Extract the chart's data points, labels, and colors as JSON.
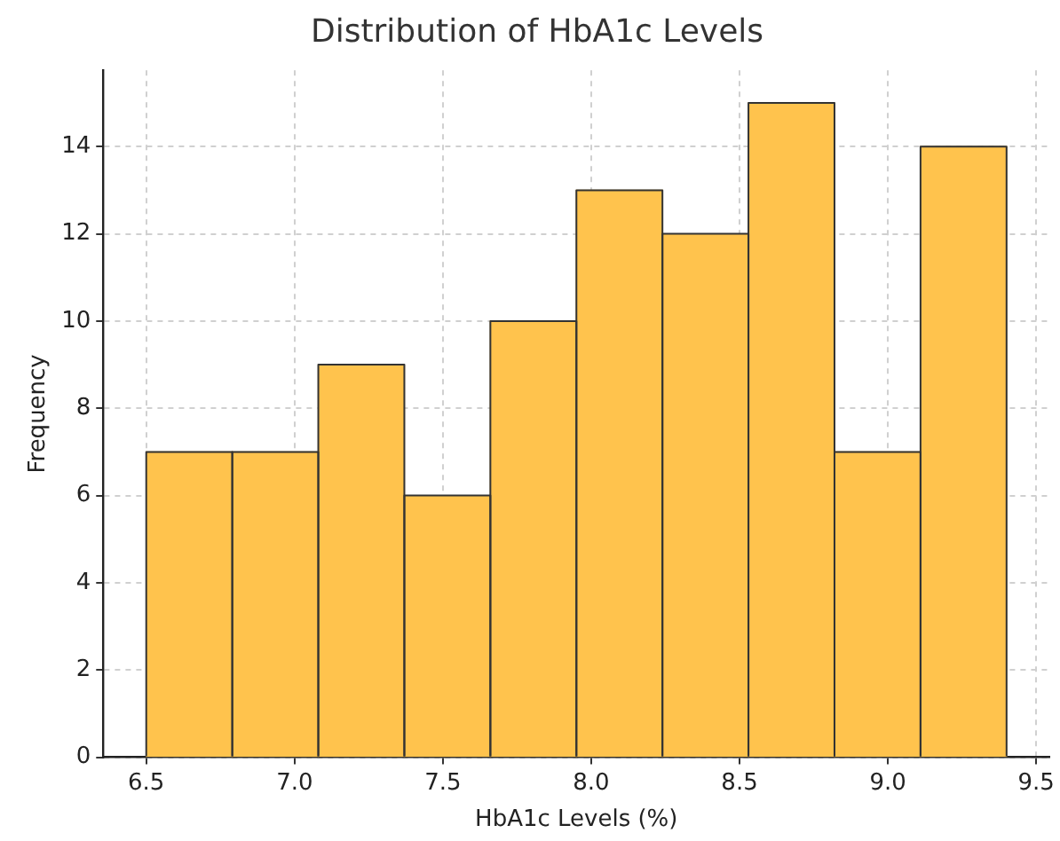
{
  "chart_data": {
    "type": "histogram",
    "title": "Distribution of HbA1c Levels",
    "xlabel": "HbA1c Levels (%)",
    "ylabel": "Frequency",
    "bins": [
      6.5,
      6.79,
      7.08,
      7.37,
      7.66,
      7.95,
      8.24,
      8.53,
      8.82,
      9.11,
      9.4
    ],
    "values": [
      7,
      7,
      9,
      6,
      10,
      13,
      12,
      15,
      7,
      14
    ],
    "color": "#ffc34d",
    "xlim": [
      6.355,
      9.545
    ],
    "xticks": [
      {
        "value": 6.5,
        "label": "6.5"
      },
      {
        "value": 7,
        "label": "7.0"
      },
      {
        "value": 7.5,
        "label": "7.5"
      },
      {
        "value": 8,
        "label": "8.0"
      },
      {
        "value": 8.5,
        "label": "8.5"
      },
      {
        "value": 9,
        "label": "9.0"
      },
      {
        "value": 9.5,
        "label": "9.5"
      }
    ],
    "ylim": [
      0,
      15.75
    ],
    "yticks": [
      0,
      2,
      4,
      6,
      8,
      10,
      12,
      14
    ],
    "grid": true
  }
}
